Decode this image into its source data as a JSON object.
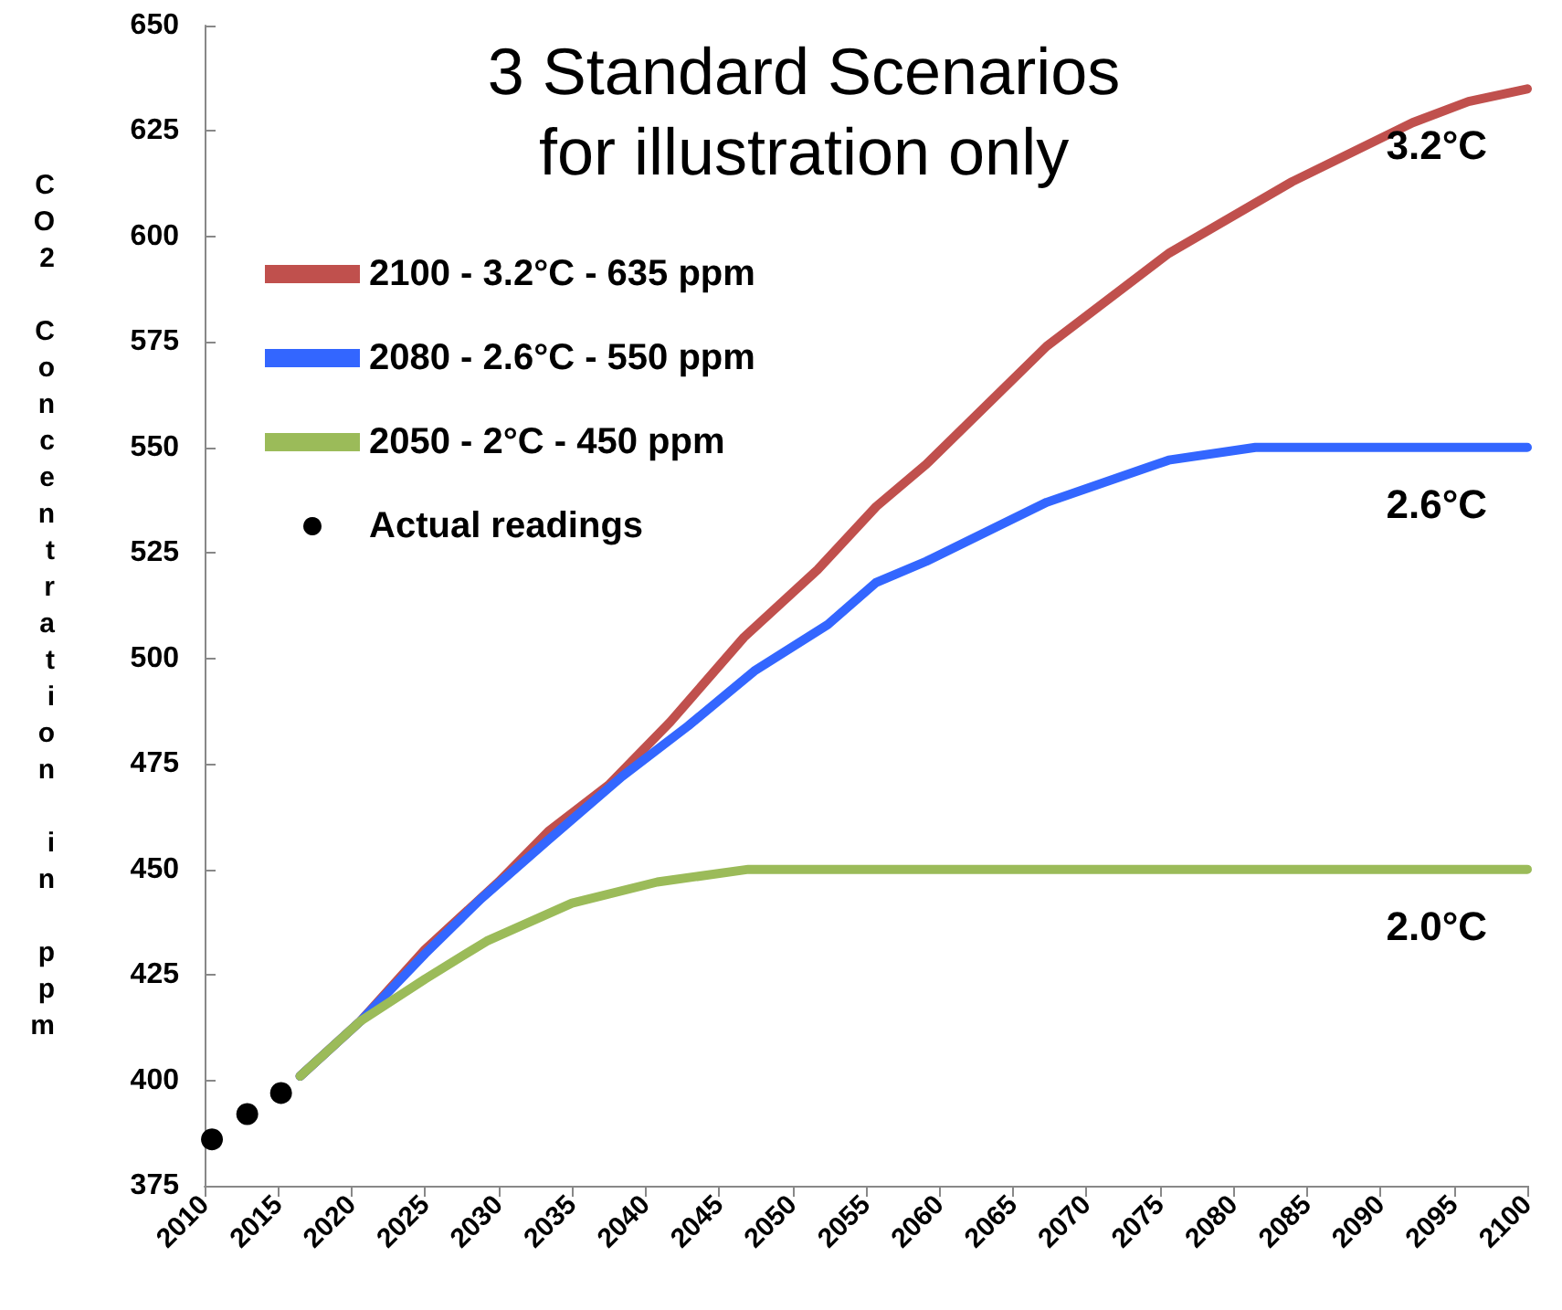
{
  "chart_data": {
    "type": "line",
    "title": "3 Standard Scenarios",
    "subtitle": "for illustration only",
    "ylabel": "CO2 Concentration in ppm",
    "xlim": [
      2010,
      2100
    ],
    "xticks": [
      2010,
      2015,
      2020,
      2025,
      2030,
      2035,
      2040,
      2045,
      2050,
      2055,
      2060,
      2065,
      2070,
      2075,
      2080,
      2085,
      2090,
      2095,
      2100
    ],
    "ylim": [
      375,
      650
    ],
    "yticks": [
      375,
      400,
      425,
      450,
      475,
      500,
      525,
      550,
      575,
      600,
      625,
      650
    ],
    "grid": false,
    "legend": "top left",
    "line_style": "solid",
    "series": [
      {
        "name": "2100 - 3.2°C - 635 ppm",
        "color": "#c0504d",
        "marker": "none",
        "x": [
          2016.5,
          2020.6,
          2025,
          2030,
          2033.4,
          2037.5,
          2041.7,
          2046.7,
          2051.7,
          2055.7,
          2059.1,
          2067.3,
          2075.6,
          2084,
          2092.2,
          2096,
          2100
        ],
        "values": [
          401,
          414,
          431,
          447,
          459,
          470,
          485,
          505,
          521,
          536,
          546,
          574,
          596,
          613,
          627,
          632,
          635
        ]
      },
      {
        "name": "2080 - 2.6°C - 550 ppm",
        "color": "#3366ff",
        "marker": "none",
        "x": [
          2016.5,
          2020.6,
          2025,
          2028.8,
          2033.4,
          2038.4,
          2042.9,
          2047.4,
          2052.4,
          2055.7,
          2059.1,
          2067.3,
          2075.6,
          2081.5,
          2100
        ],
        "values": [
          401,
          414,
          430,
          443,
          457,
          472,
          484,
          497,
          508,
          518,
          523,
          537,
          547,
          550,
          550
        ]
      },
      {
        "name": "2050 - 2°C - 450 ppm",
        "color": "#9bbb59",
        "marker": "none",
        "x": [
          2016.5,
          2020.6,
          2025,
          2029.2,
          2035,
          2040.8,
          2047,
          2100
        ],
        "values": [
          401,
          414,
          424,
          433,
          442,
          447,
          450,
          450
        ]
      },
      {
        "name": "Actual readings",
        "type": "scatter",
        "color": "#000000",
        "marker": "circle",
        "x": [
          2010.5,
          2012.9,
          2015.2
        ],
        "values": [
          386,
          392,
          397
        ]
      }
    ],
    "annotations": [
      "3.2°C",
      "2.6°C",
      "2.0°C"
    ]
  }
}
